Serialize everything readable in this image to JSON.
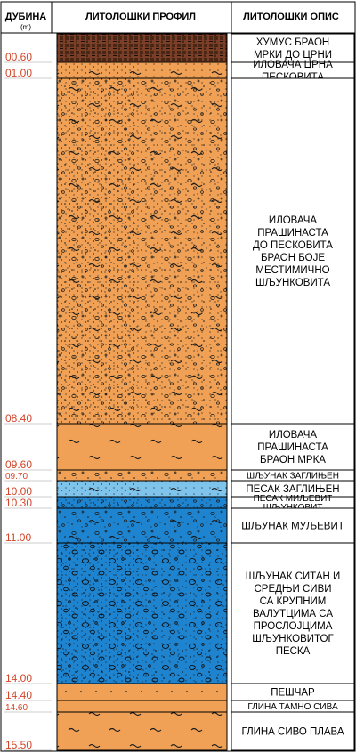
{
  "header": {
    "depth_title": "ДУБИНА",
    "depth_unit": "(m)",
    "profile_title": "ЛИТОЛОШКИ ПРОФИЛ",
    "description_title": "ЛИТОЛОШКИ ОПИС"
  },
  "colors": {
    "depth_text": "#d2462a",
    "humus": "#7a3f26",
    "orange_fill": "#f0a155",
    "light_blue": "#7fc4ec",
    "blue": "#1f84d0",
    "outline": "#000000"
  },
  "layers": [
    {
      "top": 0.0,
      "bottom": 0.6,
      "depth_label": "00.60",
      "pattern": "humus",
      "fill": "#7a3f26",
      "description": [
        "ХУМУС БРАОН",
        "МРКИ ДО ЦРНИ"
      ]
    },
    {
      "top": 0.6,
      "bottom": 1.0,
      "depth_label": "01.00",
      "pattern": "sandy-silt",
      "fill": "#f0a155",
      "description": [
        "ИЛОВАЧА ЦРНА",
        "ПЕСКОВИТА"
      ]
    },
    {
      "top": 1.0,
      "bottom": 8.4,
      "depth_label": "08.40",
      "pattern": "silt-gravel",
      "fill": "#f0a155",
      "description": [
        "ИЛОВАЧА",
        "ПРАШИНАСТА",
        "ДО ПЕСКОВИТА",
        "БРАОН БОЈЕ",
        "МЕСТИМИЧНО",
        "ШЉУНКОВИТА"
      ]
    },
    {
      "top": 8.4,
      "bottom": 9.6,
      "depth_label": "09.60",
      "pattern": "silt",
      "fill": "#f0a155",
      "description": [
        "ИЛОВАЧА",
        "ПРАШИНАСТА",
        "БРАОН МРКА"
      ]
    },
    {
      "top": 9.6,
      "bottom": 9.7,
      "depth_label": "09.70",
      "pattern": "clayey-gravel",
      "fill": "#f0a155",
      "description": [
        "ШЉУНАК ЗАГЛИЊЕН"
      ]
    },
    {
      "top": 9.7,
      "bottom": 10.0,
      "depth_label": "10.00",
      "pattern": "clayey-sand",
      "fill": "#7fc4ec",
      "description": [
        "ПЕСАК ЗАГЛИЊЕН"
      ]
    },
    {
      "top": 10.0,
      "bottom": 10.3,
      "depth_label": "10.30",
      "pattern": "silty-sand",
      "fill": "#1f84d0",
      "description": [
        "ПЕСАК МИЉЕВИТ",
        "ШЉУНКОВИТ"
      ]
    },
    {
      "top": 10.3,
      "bottom": 11.0,
      "depth_label": "11.00",
      "pattern": "silty-gravel",
      "fill": "#1f84d0",
      "description": [
        "ШЉУНАК МУЉЕВИТ"
      ]
    },
    {
      "top": 11.0,
      "bottom": 14.0,
      "depth_label": "14.00",
      "pattern": "gravel-cobbles",
      "fill": "#1f84d0",
      "description": [
        "ШЉУНАК СИТАН И",
        "СРЕДЊИ СИВИ",
        "СА КРУПНИМ",
        "ВАЛУТЦИМА СА",
        "ПРОСЛОЈЦИМА",
        "ШЉУНКОВИТОГ",
        "ПЕСКА"
      ]
    },
    {
      "top": 14.0,
      "bottom": 14.4,
      "depth_label": "14.40",
      "pattern": "sandstone",
      "fill": "#f0a155",
      "description": [
        "ПЕШЧАР"
      ]
    },
    {
      "top": 14.4,
      "bottom": 14.6,
      "depth_label": "14.60",
      "pattern": "clay",
      "fill": "#f0a155",
      "description": [
        "ГЛИНА ТАМНО СИВА"
      ]
    },
    {
      "top": 14.6,
      "bottom": 15.5,
      "depth_label": "15.50",
      "pattern": "clay",
      "fill": "#f0a155",
      "description": [
        "ГЛИНА СИВО ПЛАВА"
      ]
    }
  ]
}
